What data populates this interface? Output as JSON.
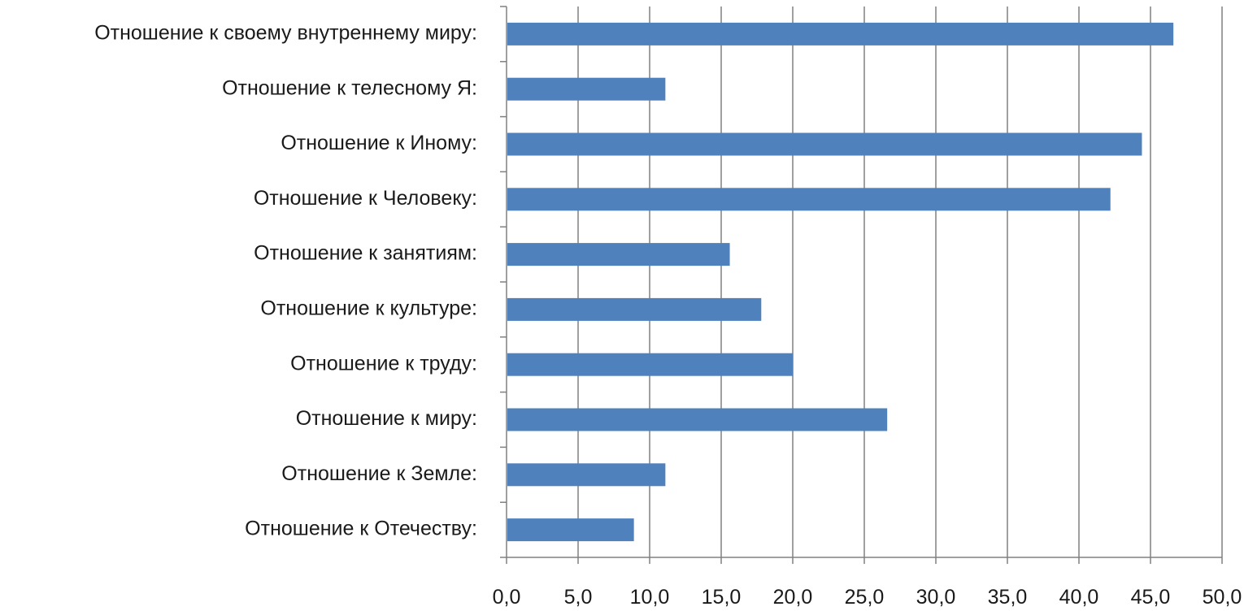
{
  "chart_data": {
    "type": "bar",
    "orientation": "horizontal",
    "categories": [
      "Отношение к своему внутреннему миру:",
      "Отношение к телесному Я:",
      "Отношение к Иному:",
      "Отношение к Человеку:",
      "Отношение к занятиям:",
      "Отношение к культуре:",
      "Отношение к труду:",
      "Отношение к миру:",
      "Отношение к Земле:",
      "Отношение к Отечеству:"
    ],
    "values": [
      46.6,
      11.1,
      44.4,
      42.2,
      15.6,
      17.8,
      20.0,
      26.6,
      11.1,
      8.9
    ],
    "xlim": [
      0,
      50
    ],
    "xticks": [
      0,
      5,
      10,
      15,
      20,
      25,
      30,
      35,
      40,
      45,
      50
    ],
    "tick_labels": [
      "0,0",
      "5,0",
      "10,0",
      "15,0",
      "20,0",
      "25,0",
      "30,0",
      "35,0",
      "40,0",
      "45,0",
      "50,0"
    ],
    "title": "",
    "xlabel": "",
    "ylabel": "",
    "grid": true,
    "grid_axis": "x",
    "legend": "none",
    "colors": {
      "bar": "#4F81BD",
      "grid": "#808080",
      "axis": "#808080",
      "text": "#1a1a1a"
    }
  }
}
